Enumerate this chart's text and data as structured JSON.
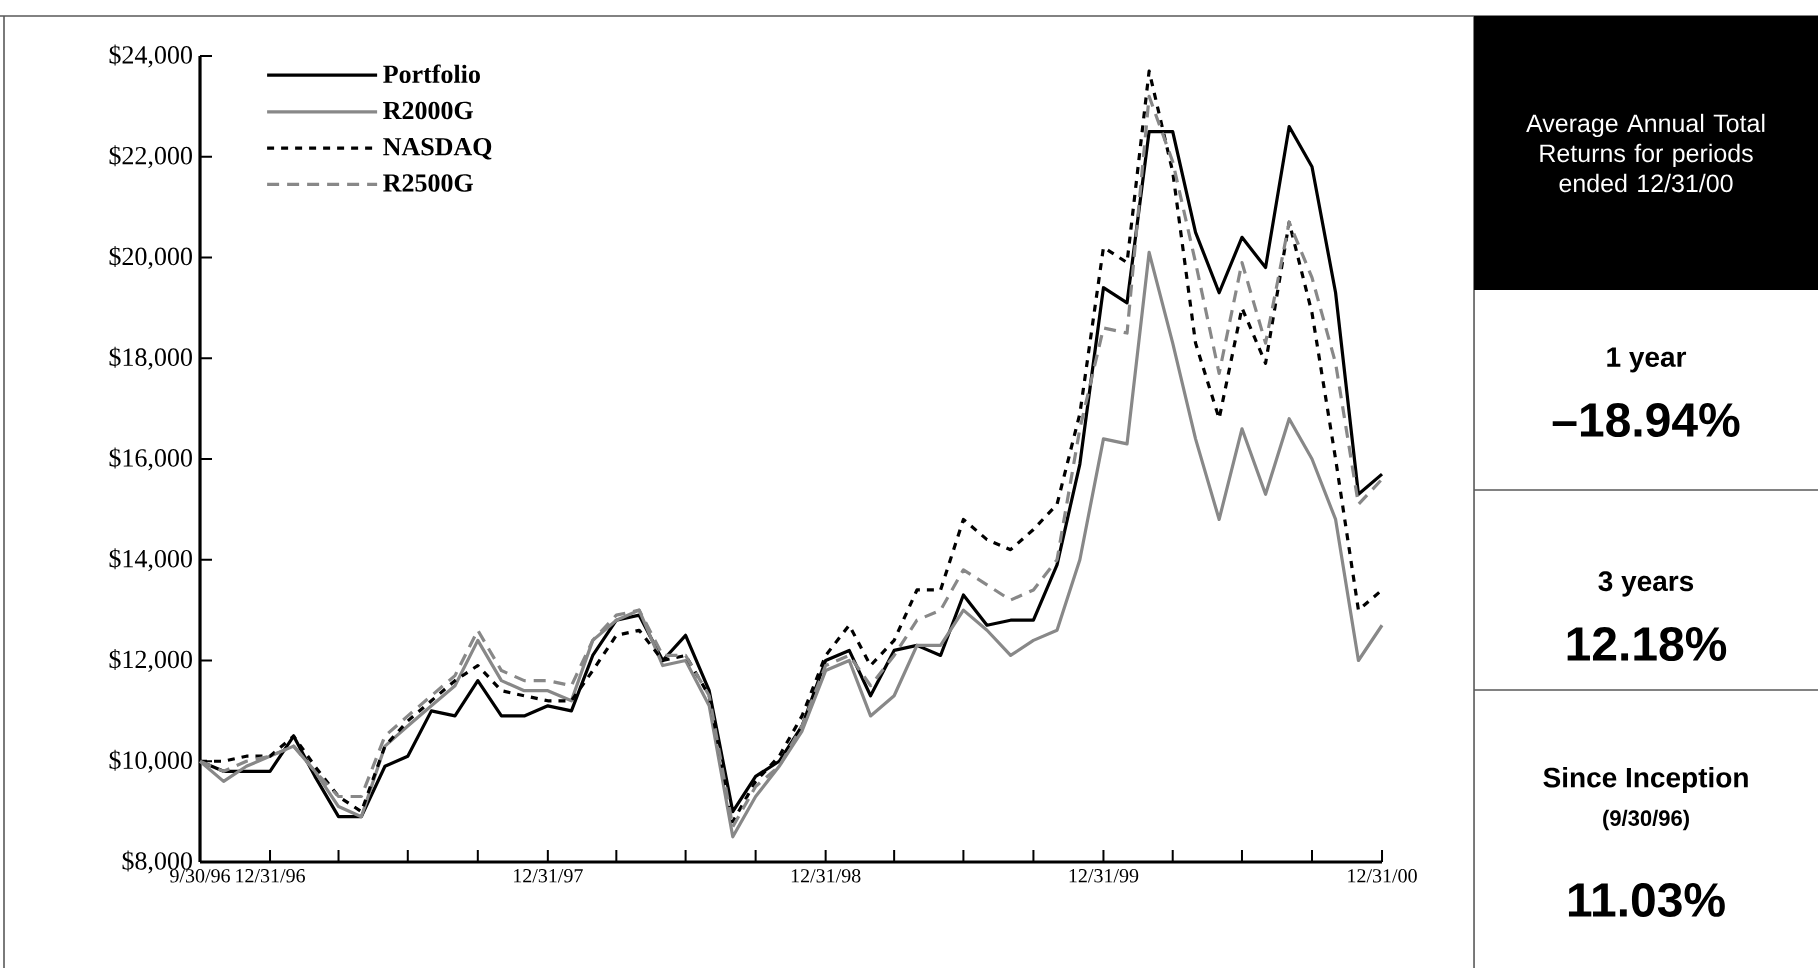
{
  "chart_data": [
    {
      "type": "line",
      "x": [
        "1996-09-30",
        "1996-10-31",
        "1996-11-30",
        "1996-12-31",
        "1997-01-31",
        "1997-02-28",
        "1997-03-31",
        "1997-04-30",
        "1997-05-31",
        "1997-06-30",
        "1997-07-31",
        "1997-08-31",
        "1997-09-30",
        "1997-10-31",
        "1997-11-30",
        "1997-12-31",
        "1998-01-31",
        "1998-02-28",
        "1998-03-31",
        "1998-04-30",
        "1998-05-31",
        "1998-06-30",
        "1998-07-31",
        "1998-08-31",
        "1998-09-30",
        "1998-10-31",
        "1998-11-30",
        "1998-12-31",
        "1999-01-31",
        "1999-02-28",
        "1999-03-31",
        "1999-04-30",
        "1999-05-31",
        "1999-06-30",
        "1999-07-31",
        "1999-08-31",
        "1999-09-30",
        "1999-10-31",
        "1999-11-30",
        "1999-12-31",
        "2000-01-31",
        "2000-02-29",
        "2000-03-31",
        "2000-04-30",
        "2000-05-31",
        "2000-06-30",
        "2000-07-31",
        "2000-08-31",
        "2000-09-30",
        "2000-10-31",
        "2000-11-30",
        "2000-12-31"
      ],
      "xlim": [
        "1996-09-30",
        "2000-12-31"
      ],
      "xticks": [
        {
          "value": "1996-09-30",
          "label": "9/30/96"
        },
        {
          "value": "1996-12-31",
          "label": "12/31/96"
        },
        {
          "value": "1997-03-31",
          "label": null
        },
        {
          "value": "1997-06-30",
          "label": null
        },
        {
          "value": "1997-09-30",
          "label": null
        },
        {
          "value": "1997-12-31",
          "label": "12/31/97"
        },
        {
          "value": "1998-03-31",
          "label": null
        },
        {
          "value": "1998-06-30",
          "label": null
        },
        {
          "value": "1998-09-30",
          "label": null
        },
        {
          "value": "1998-12-31",
          "label": "12/31/98"
        },
        {
          "value": "1999-03-31",
          "label": null
        },
        {
          "value": "1999-06-30",
          "label": null
        },
        {
          "value": "1999-09-30",
          "label": null
        },
        {
          "value": "1999-12-31",
          "label": "12/31/99"
        },
        {
          "value": "2000-03-31",
          "label": null
        },
        {
          "value": "2000-06-30",
          "label": null
        },
        {
          "value": "2000-09-30",
          "label": null
        },
        {
          "value": "2000-12-31",
          "label": "12/31/00"
        }
      ],
      "ylim": [
        8000,
        24000
      ],
      "yticks": [
        {
          "value": 8000,
          "label": "$8,000"
        },
        {
          "value": 10000,
          "label": "$10,000"
        },
        {
          "value": 12000,
          "label": "$12,000"
        },
        {
          "value": 14000,
          "label": "$14,000"
        },
        {
          "value": 16000,
          "label": "$16,000"
        },
        {
          "value": 18000,
          "label": "$18,000"
        },
        {
          "value": 20000,
          "label": "$20,000"
        },
        {
          "value": 22000,
          "label": "$22,000"
        },
        {
          "value": 24000,
          "label": "$24,000"
        }
      ],
      "legend": "top left",
      "series": [
        {
          "name": "Portfolio",
          "color": "#000000",
          "line_style": "solid",
          "values": [
            10000,
            9800,
            9800,
            9800,
            10500,
            9700,
            8900,
            8900,
            9900,
            10100,
            11000,
            10900,
            11600,
            10900,
            10900,
            11100,
            11000,
            12100,
            12800,
            12900,
            12000,
            12500,
            11400,
            9000,
            9700,
            10000,
            10700,
            12000,
            12200,
            11300,
            12200,
            12300,
            12100,
            13300,
            12700,
            12800,
            12800,
            13900,
            15900,
            19400,
            19100,
            22500,
            22500,
            20500,
            19300,
            20400,
            19800,
            22600,
            21800,
            19300,
            15300,
            15700
          ]
        },
        {
          "name": "R2000G",
          "color": "#888888",
          "line_style": "solid",
          "values": [
            10000,
            9600,
            9900,
            10100,
            10300,
            9800,
            9100,
            8900,
            10300,
            10700,
            11100,
            11500,
            12400,
            11600,
            11400,
            11400,
            11200,
            12400,
            12800,
            13000,
            11900,
            12000,
            11100,
            8500,
            9300,
            9900,
            10600,
            11800,
            12000,
            10900,
            11300,
            12300,
            12300,
            13000,
            12600,
            12100,
            12400,
            12600,
            14000,
            16400,
            16300,
            20100,
            18300,
            16400,
            14800,
            16600,
            15300,
            16800,
            16000,
            14800,
            12000,
            12700
          ]
        },
        {
          "name": "NASDAQ",
          "color": "#000000",
          "line_style": "dotted",
          "values": [
            10000,
            10000,
            10100,
            10100,
            10500,
            9900,
            9300,
            9000,
            10300,
            10800,
            11200,
            11600,
            11900,
            11400,
            11300,
            11200,
            11200,
            11800,
            12500,
            12600,
            12000,
            12100,
            11300,
            8800,
            9600,
            10100,
            10900,
            12100,
            12700,
            11900,
            12400,
            13400,
            13400,
            14800,
            14400,
            14200,
            14600,
            15100,
            16900,
            20200,
            19900,
            23700,
            21700,
            18300,
            16800,
            19000,
            17900,
            20700,
            18900,
            16000,
            13000,
            13400
          ]
        },
        {
          "name": "R2500G",
          "color": "#888888",
          "line_style": "dashed",
          "values": [
            10000,
            9800,
            10000,
            10100,
            10300,
            9800,
            9300,
            9300,
            10500,
            10900,
            11300,
            11700,
            12600,
            11800,
            11600,
            11600,
            11500,
            12400,
            12900,
            13000,
            12100,
            12100,
            11300,
            8700,
            9500,
            9900,
            10700,
            11900,
            12100,
            11500,
            12100,
            12800,
            13000,
            13800,
            13500,
            13200,
            13400,
            14000,
            16600,
            18600,
            18500,
            23200,
            21900,
            19900,
            17700,
            19900,
            18300,
            20700,
            19600,
            17900,
            15100,
            15600
          ]
        }
      ]
    },
    {
      "type": "other",
      "title": "Average Annual Total Returns for periods ended 12/31/00",
      "annotations": [
        "1 year",
        "–18.94%",
        "3 years",
        "12.18%",
        "Since Inception",
        "(9/30/96)",
        "11.03%"
      ]
    }
  ]
}
